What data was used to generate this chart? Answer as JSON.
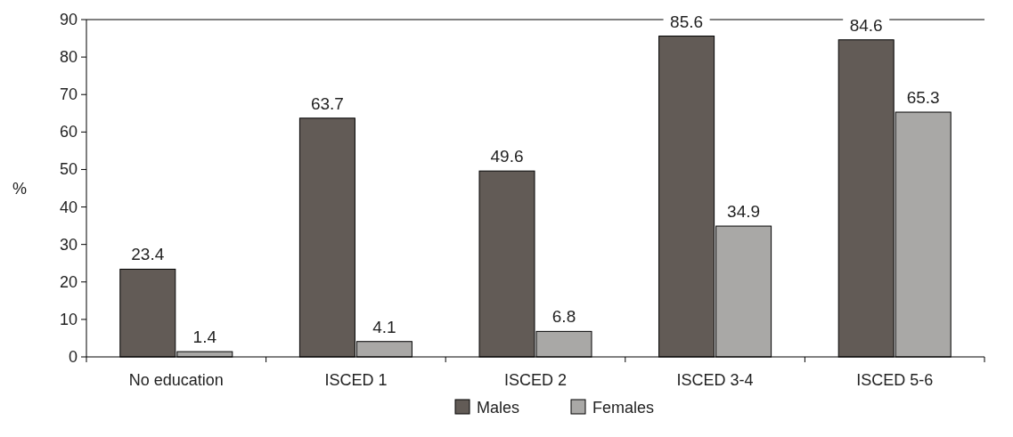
{
  "chart_data": {
    "type": "bar",
    "ylabel": "%",
    "categories": [
      "No education",
      "ISCED 1",
      "ISCED 2",
      "ISCED 3-4",
      "ISCED 5-6"
    ],
    "series": [
      {
        "name": "Males",
        "color": "#625b56",
        "values": [
          23.4,
          63.7,
          49.6,
          85.6,
          84.6
        ]
      },
      {
        "name": "Females",
        "color": "#a9a8a6",
        "values": [
          1.4,
          4.1,
          6.8,
          34.9,
          65.3
        ]
      }
    ],
    "ylim": [
      0,
      90
    ],
    "yticks": [
      0,
      10,
      20,
      30,
      40,
      50,
      60,
      70,
      80,
      90
    ],
    "data_labels": true,
    "legend": "bottom",
    "grid": false
  }
}
